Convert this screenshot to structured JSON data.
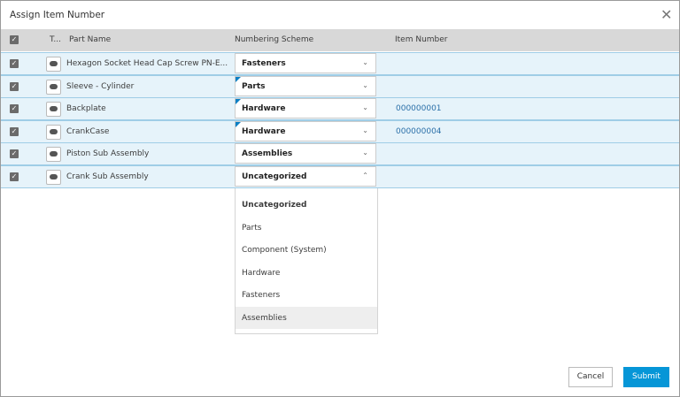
{
  "dialog": {
    "title": "Assign Item Number"
  },
  "table": {
    "columns": [
      "T...",
      "Part Name",
      "Numbering Scheme",
      "Item Number"
    ],
    "rows": [
      {
        "name": "Hexagon Socket Head Cap Screw PN-E...",
        "scheme": "Fasteners"
      },
      {
        "name": "Sleeve - Cylinder",
        "scheme": "Parts"
      },
      {
        "name": "Backplate",
        "scheme": "Hardware",
        "item_number": "000000001"
      },
      {
        "name": "CrankCase",
        "scheme": "Hardware",
        "item_number": "000000004"
      },
      {
        "name": "Piston Sub Assembly",
        "scheme": "Assemblies"
      },
      {
        "name": "Crank Sub Assembly",
        "scheme": "Uncategorized"
      }
    ]
  },
  "dropdown": {
    "options": [
      "Uncategorized",
      "Parts",
      "Component (System)",
      "Hardware",
      "Fasteners",
      "Assemblies"
    ]
  },
  "buttons": {
    "cancel": "Cancel",
    "submit": "Submit"
  }
}
